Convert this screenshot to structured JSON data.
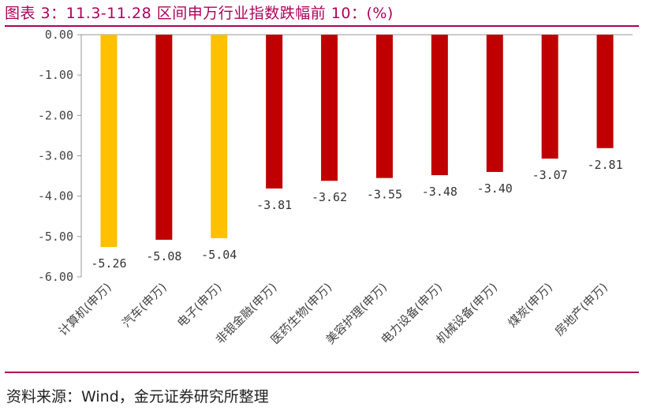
{
  "title": "图表 3：11.3-11.28 区间申万行业指数跌幅前 10：(%)",
  "source": "资料来源：Wind，金元证券研究所整理",
  "colors": {
    "accent": "#b0005a",
    "red": "#c00000",
    "yellow": "#ffc000"
  },
  "chart_data": {
    "type": "bar",
    "title": "图表 3：11.3-11.28 区间申万行业指数跌幅前 10：(%)",
    "xlabel": "",
    "ylabel": "",
    "ylim": [
      -6.0,
      0.0
    ],
    "yticks": [
      "0.00",
      "-1.00",
      "-2.00",
      "-3.00",
      "-4.00",
      "-5.00",
      "-6.00"
    ],
    "categories": [
      "计算机(申万)",
      "汽车(申万)",
      "电子(申万)",
      "非银金融(申万)",
      "医药生物(申万)",
      "美容护理(申万)",
      "电力设备(申万)",
      "机械设备(申万)",
      "煤炭(申万)",
      "房地产(申万)"
    ],
    "values": [
      -5.26,
      -5.08,
      -5.04,
      -3.81,
      -3.62,
      -3.55,
      -3.48,
      -3.4,
      -3.07,
      -2.81
    ],
    "value_labels": [
      "-5.26",
      "-5.08",
      "-5.04",
      "-3.81",
      "-3.62",
      "-3.55",
      "-3.48",
      "-3.40",
      "-3.07",
      "-2.81"
    ],
    "bar_colors": [
      "#ffc000",
      "#c00000",
      "#ffc000",
      "#c00000",
      "#c00000",
      "#c00000",
      "#c00000",
      "#c00000",
      "#c00000",
      "#c00000"
    ],
    "grid": false,
    "legend": "none"
  }
}
